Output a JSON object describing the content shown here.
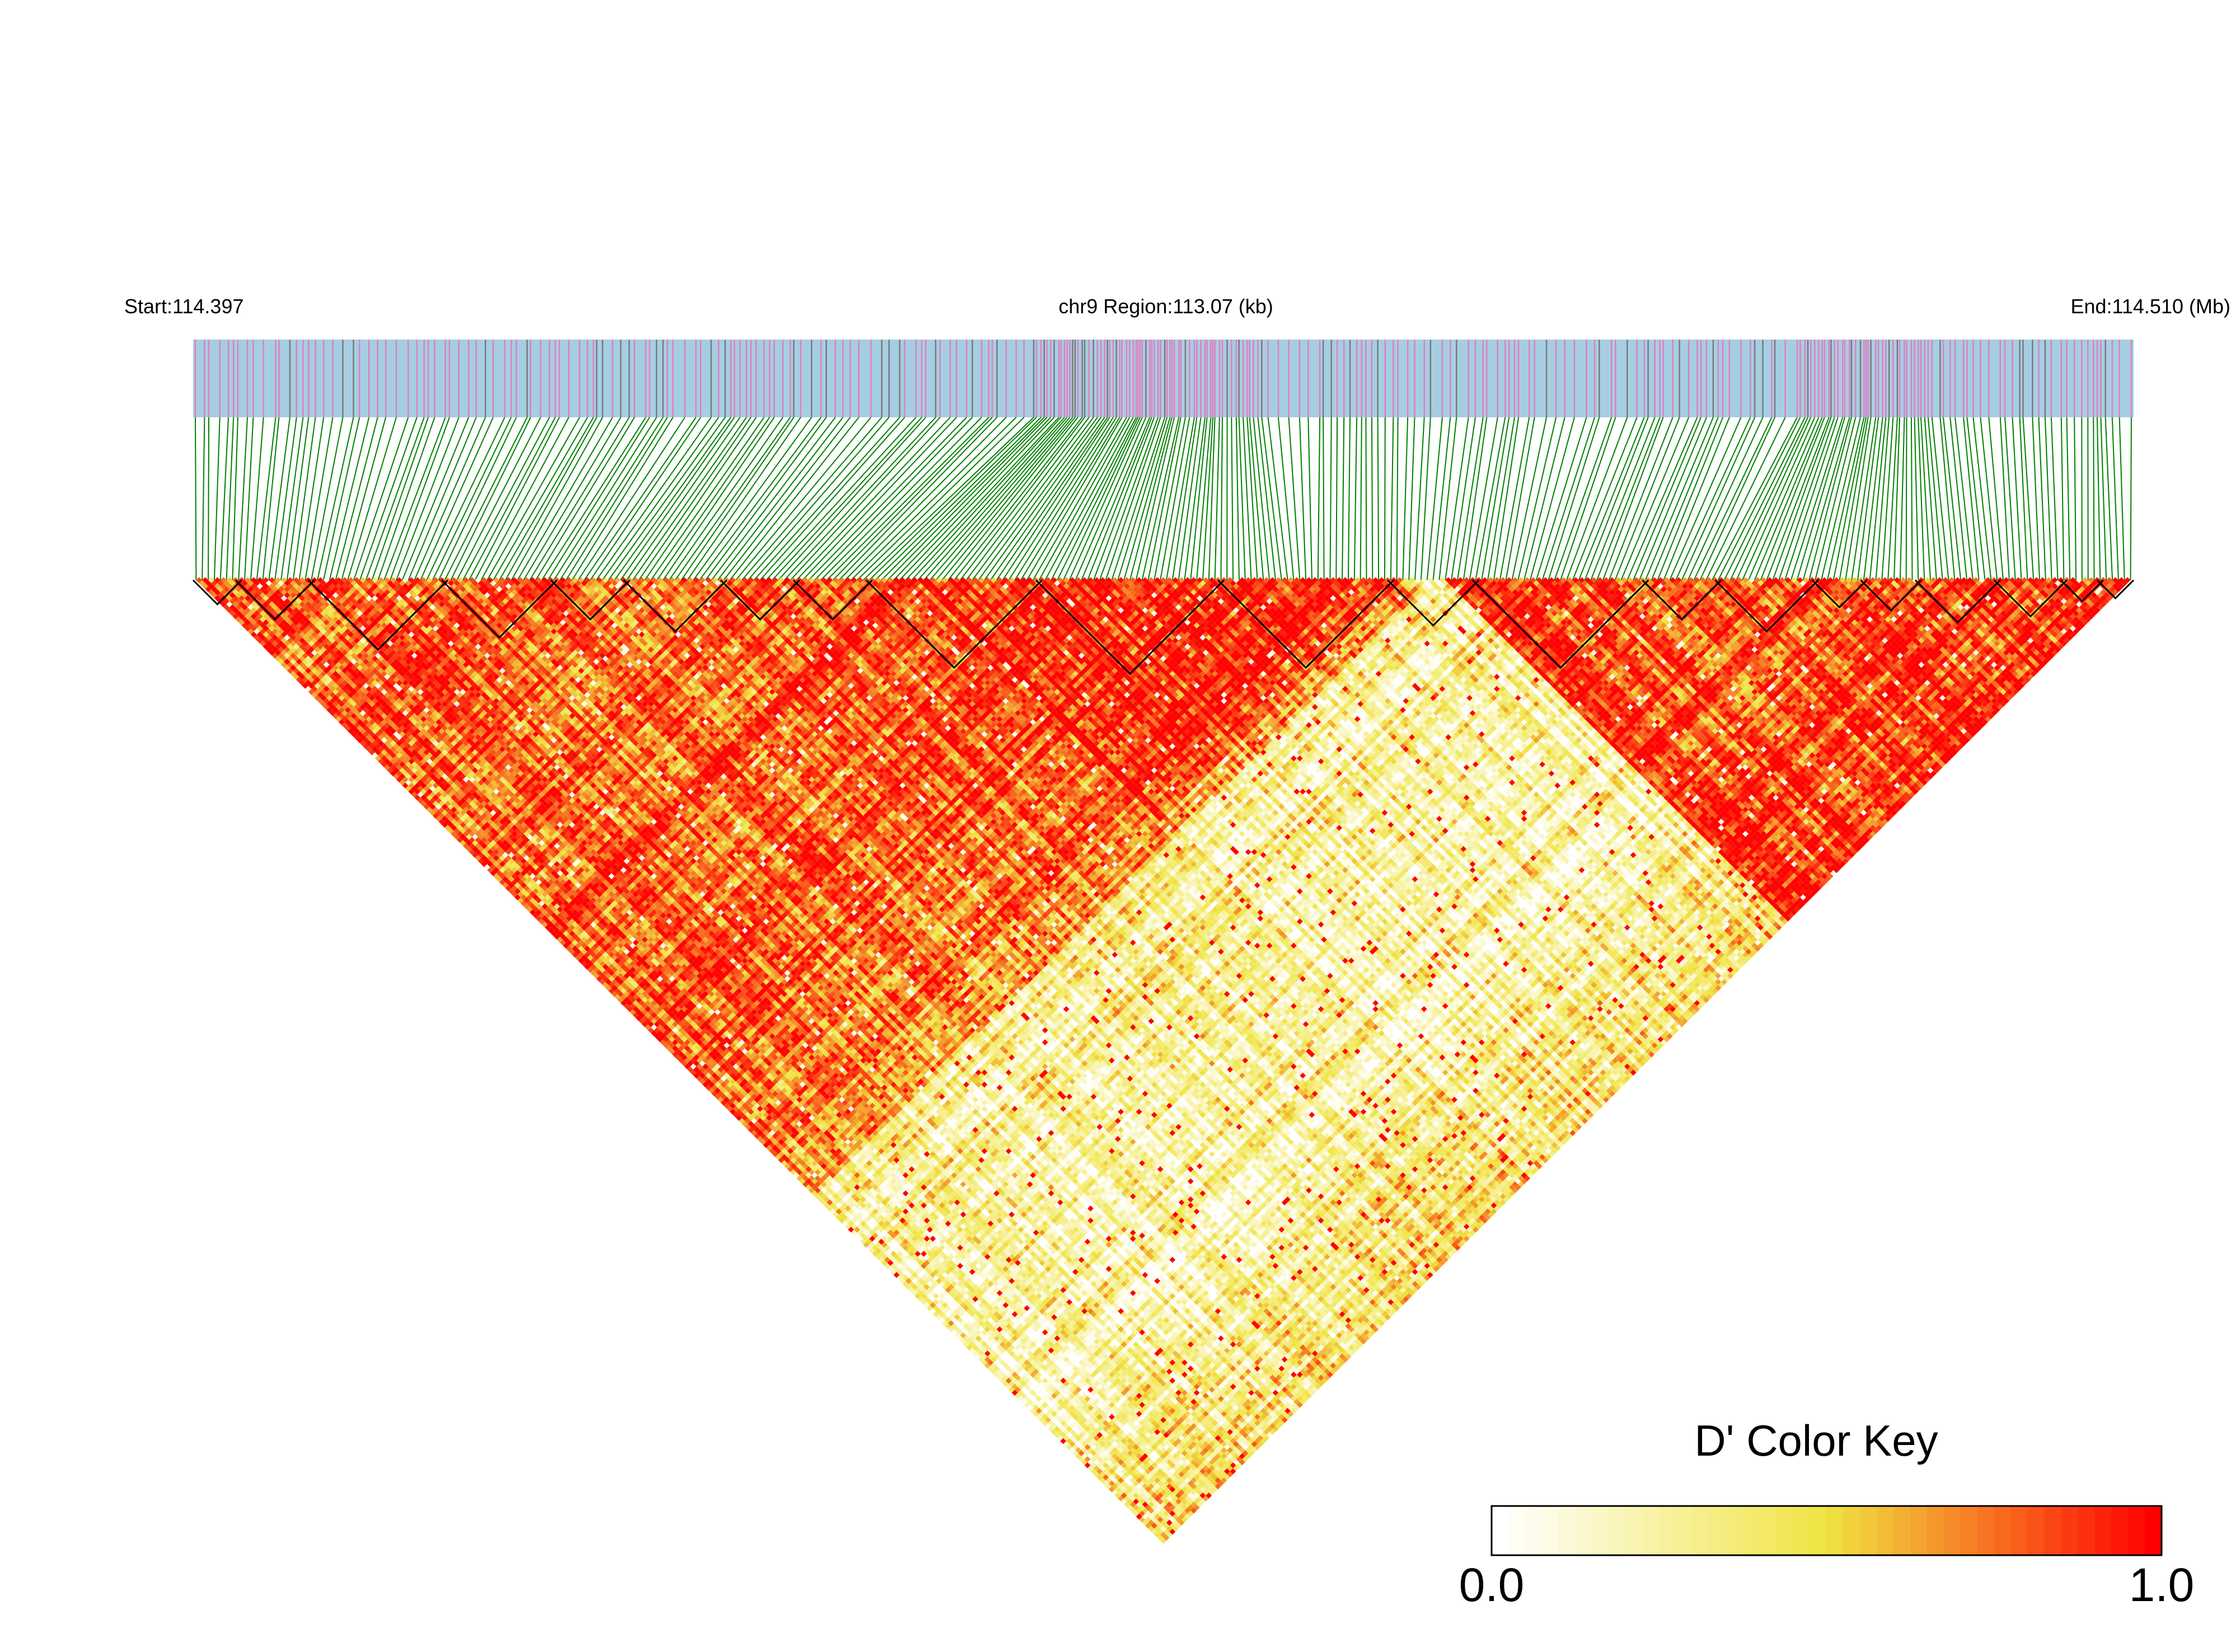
{
  "header": {
    "start_label": "Start:114.397",
    "region_label": "chr9 Region:113.07 (kb)",
    "end_label": "End:114.510 (Mb)"
  },
  "chart_data": {
    "type": "heatmap",
    "title": "",
    "chromosome": "chr9",
    "region_start_mb": 114.397,
    "region_end_mb": 114.51,
    "region_size_kb": 113.07,
    "metric": "D'",
    "value_range": [
      0.0,
      1.0
    ],
    "n_snps": 320,
    "haplotype_blocks": [
      [
        1,
        8
      ],
      [
        8,
        20
      ],
      [
        20,
        42
      ],
      [
        42,
        60
      ],
      [
        60,
        72
      ],
      [
        72,
        88
      ],
      [
        88,
        100
      ],
      [
        100,
        112
      ],
      [
        112,
        140
      ],
      [
        140,
        170
      ],
      [
        170,
        198
      ],
      [
        198,
        212
      ],
      [
        212,
        240
      ],
      [
        240,
        252
      ],
      [
        252,
        268
      ],
      [
        268,
        276
      ],
      [
        276,
        285
      ],
      [
        285,
        298
      ],
      [
        298,
        309
      ],
      [
        309,
        315
      ],
      [
        315,
        320
      ]
    ],
    "ld_structure": [
      {
        "snp_range": [
          1,
          170
        ],
        "d_prime": 0.8
      },
      {
        "snp_range": [
          120,
          200
        ],
        "d_prime": 0.97
      },
      {
        "snp_range": [
          210,
          320
        ],
        "d_prime": 0.85
      },
      {
        "snp_range": [
          1,
          200
        ],
        "d_prime": 0.7
      },
      {
        "snp_range": [
          150,
          320
        ],
        "d_prime": 0.3
      }
    ],
    "legend": {
      "title": "D' Color Key",
      "min_label": "0.0",
      "max_label": "1.0",
      "placement": "bottom-right"
    },
    "colors": {
      "track_background": "#a6cee3",
      "snp_tick_major": "#e07fc0",
      "snp_tick_minor": "#7a7a7a",
      "connector": "#008000",
      "scale_low": "#ffffff",
      "scale_mid": "#f0e442",
      "scale_high": "#ff0000",
      "block_outline": "#000000"
    }
  }
}
